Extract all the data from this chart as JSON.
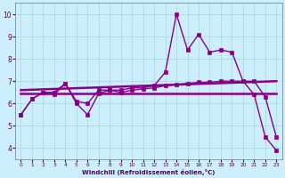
{
  "xlabel": "Windchill (Refroidissement éolien,°C)",
  "bg_color": "#cceeff",
  "line_color": "#880088",
  "grid_color": "#aadddd",
  "xlim": [
    -0.5,
    23.5
  ],
  "ylim": [
    3.5,
    10.5
  ],
  "xticks": [
    0,
    1,
    2,
    3,
    4,
    5,
    6,
    7,
    8,
    9,
    10,
    11,
    12,
    13,
    14,
    15,
    16,
    17,
    18,
    19,
    20,
    21,
    22,
    23
  ],
  "yticks": [
    4,
    5,
    6,
    7,
    8,
    9,
    10
  ],
  "series": {
    "line1": {
      "x": [
        0,
        1,
        2,
        3,
        4,
        5,
        6,
        7,
        8,
        9,
        10,
        11,
        12,
        13,
        14,
        15,
        16,
        17,
        18,
        19,
        20,
        21,
        22,
        23
      ],
      "y": [
        5.5,
        6.2,
        6.5,
        6.5,
        6.9,
        6.1,
        6.0,
        6.6,
        6.6,
        6.6,
        6.7,
        6.7,
        6.8,
        7.4,
        10.0,
        8.4,
        9.1,
        8.3,
        8.4,
        8.3,
        7.0,
        6.4,
        4.5,
        3.9
      ],
      "linewidth": 1.0
    },
    "line2": {
      "x": [
        0,
        1,
        2,
        3,
        4,
        5,
        6,
        7,
        8,
        9,
        10,
        11,
        12,
        13,
        14,
        15,
        16,
        17,
        18,
        19,
        20,
        21,
        22,
        23
      ],
      "y": [
        5.5,
        6.2,
        6.5,
        6.4,
        6.9,
        6.0,
        5.5,
        6.45,
        6.6,
        6.5,
        6.6,
        6.65,
        6.7,
        6.8,
        6.85,
        6.9,
        6.95,
        6.95,
        7.0,
        7.0,
        7.0,
        7.0,
        6.3,
        4.5
      ],
      "linewidth": 1.0
    },
    "line3": {
      "x": [
        0,
        23
      ],
      "y": [
        6.6,
        7.0
      ],
      "linewidth": 1.8
    },
    "line4": {
      "x": [
        0,
        23
      ],
      "y": [
        6.45,
        6.45
      ],
      "linewidth": 1.8
    }
  }
}
